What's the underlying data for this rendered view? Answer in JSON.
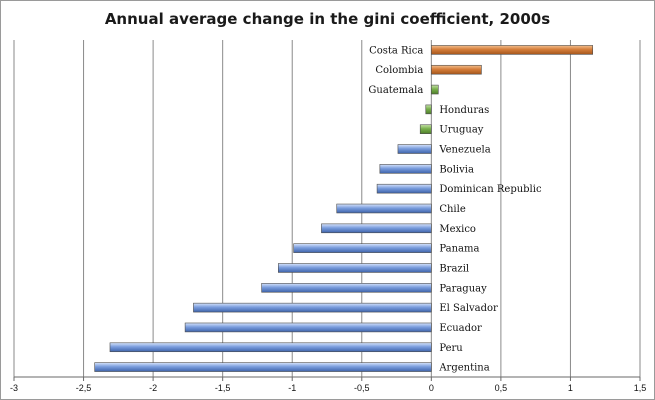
{
  "chart_data": {
    "type": "bar",
    "orientation": "horizontal",
    "title": "Annual average change in the gini coefficient, 2000s",
    "xlabel": "",
    "ylabel": "",
    "xlim": [
      -3,
      1.5
    ],
    "grid": true,
    "legend": "none",
    "tick_labels": [
      "-3",
      "-2,5",
      "-2",
      "-1,5",
      "-1",
      "-0,5",
      "0",
      "0,5",
      "1",
      "1,5"
    ],
    "tick_values": [
      -3,
      -2.5,
      -2,
      -1.5,
      -1,
      -0.5,
      0,
      0.5,
      1,
      1.5
    ],
    "categories": [
      "Costa Rica",
      "Colombia",
      "Guatemala",
      "Honduras",
      "Uruguay",
      "Venezuela",
      "Bolivia",
      "Dominican Republic",
      "Chile",
      "Mexico",
      "Panama",
      "Brazil",
      "Paraguay",
      "El Salvador",
      "Ecuador",
      "Peru",
      "Argentina"
    ],
    "values": [
      1.16,
      0.36,
      0.05,
      -0.04,
      -0.08,
      -0.24,
      -0.37,
      -0.39,
      -0.68,
      -0.79,
      -0.99,
      -1.1,
      -1.22,
      -1.71,
      -1.77,
      -2.31,
      -2.42
    ],
    "bar_groups": [
      "orange",
      "orange",
      "green",
      "green",
      "green",
      "blue",
      "blue",
      "blue",
      "blue",
      "blue",
      "blue",
      "blue",
      "blue",
      "blue",
      "blue",
      "blue",
      "blue"
    ],
    "colors": {
      "orange": "#d57d3a",
      "green": "#79b04d",
      "blue": "#6f93d6"
    }
  }
}
